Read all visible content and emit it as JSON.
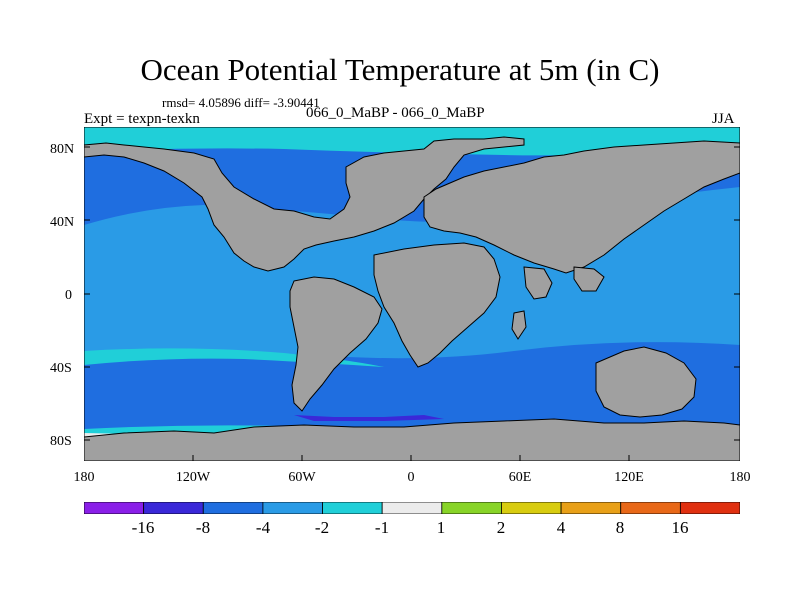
{
  "title": "Ocean Potential Temperature at 5m (in C)",
  "stats": "rmsd= 4.05896 diff= -3.90441",
  "expt": "Expt = texpn-texkn",
  "runs": "066_0_MaBP - 066_0_MaBP",
  "season": "JJA",
  "lat_labels": [
    "80N",
    "40N",
    "0",
    "40S",
    "80S"
  ],
  "lon_labels": [
    "180",
    "120W",
    "60W",
    "0",
    "60E",
    "120E",
    "180"
  ],
  "colorbar": {
    "colors": [
      "#8a1fe8",
      "#3a28d8",
      "#1f6ee0",
      "#2a9be6",
      "#20cfd8",
      "#ececec",
      "#88d428",
      "#d8cc10",
      "#e8a018",
      "#e86818",
      "#e03010"
    ],
    "labels": [
      "-16",
      "-8",
      "-4",
      "-2",
      "-1",
      "1",
      "2",
      "4",
      "8",
      "16"
    ]
  },
  "colors": {
    "land": "#a0a0a0",
    "coast": "#000000"
  }
}
